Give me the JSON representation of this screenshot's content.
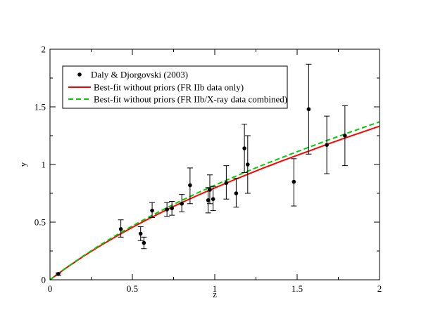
{
  "chart_data": {
    "type": "scatter",
    "title": "",
    "xlabel": "z",
    "ylabel": "y",
    "xlim": [
      0,
      2
    ],
    "ylim": [
      0,
      2
    ],
    "x_ticks": [
      "0",
      "0.5",
      "1",
      "1.5",
      "2"
    ],
    "y_ticks": [
      "0",
      "0.5",
      "1",
      "1.5",
      "2"
    ],
    "grid": false,
    "legend_position": "top-left",
    "series": [
      {
        "name": "Daly & Djorgovski (2003)",
        "kind": "points-with-errorbars",
        "color": "#000000",
        "points": [
          {
            "x": 0.05,
            "y": 0.05,
            "lo": 0.04,
            "hi": 0.06
          },
          {
            "x": 0.43,
            "y": 0.44,
            "lo": 0.37,
            "hi": 0.52
          },
          {
            "x": 0.55,
            "y": 0.4,
            "lo": 0.34,
            "hi": 0.46
          },
          {
            "x": 0.57,
            "y": 0.32,
            "lo": 0.27,
            "hi": 0.37
          },
          {
            "x": 0.62,
            "y": 0.6,
            "lo": 0.54,
            "hi": 0.67
          },
          {
            "x": 0.71,
            "y": 0.61,
            "lo": 0.55,
            "hi": 0.67
          },
          {
            "x": 0.74,
            "y": 0.62,
            "lo": 0.56,
            "hi": 0.68
          },
          {
            "x": 0.8,
            "y": 0.66,
            "lo": 0.59,
            "hi": 0.74
          },
          {
            "x": 0.85,
            "y": 0.82,
            "lo": 0.66,
            "hi": 0.97
          },
          {
            "x": 0.96,
            "y": 0.69,
            "lo": 0.58,
            "hi": 0.8
          },
          {
            "x": 0.97,
            "y": 0.78,
            "lo": 0.66,
            "hi": 0.91
          },
          {
            "x": 0.99,
            "y": 0.7,
            "lo": 0.6,
            "hi": 0.81
          },
          {
            "x": 1.07,
            "y": 0.84,
            "lo": 0.7,
            "hi": 0.99
          },
          {
            "x": 1.13,
            "y": 0.75,
            "lo": 0.63,
            "hi": 0.88
          },
          {
            "x": 1.18,
            "y": 1.14,
            "lo": 0.93,
            "hi": 1.35
          },
          {
            "x": 1.2,
            "y": 1.0,
            "lo": 0.75,
            "hi": 1.25
          },
          {
            "x": 1.48,
            "y": 0.85,
            "lo": 0.64,
            "hi": 1.05
          },
          {
            "x": 1.57,
            "y": 1.48,
            "lo": 1.09,
            "hi": 1.87
          },
          {
            "x": 1.68,
            "y": 1.17,
            "lo": 0.92,
            "hi": 1.42
          },
          {
            "x": 1.79,
            "y": 1.25,
            "lo": 0.99,
            "hi": 1.51
          }
        ]
      },
      {
        "name": "Best-fit without priors (FR IIb data only)",
        "kind": "line",
        "color": "#ff0000",
        "dash": "solid",
        "x": [
          0,
          0.05,
          0.1,
          0.2,
          0.3,
          0.4,
          0.5,
          0.6,
          0.7,
          0.8,
          0.9,
          1.0,
          1.1,
          1.2,
          1.3,
          1.4,
          1.5,
          1.6,
          1.7,
          1.8,
          1.9,
          2.0
        ],
        "y": [
          0,
          0.053,
          0.104,
          0.201,
          0.291,
          0.375,
          0.455,
          0.53,
          0.601,
          0.67,
          0.735,
          0.797,
          0.857,
          0.915,
          0.972,
          1.027,
          1.08,
          1.132,
          1.184,
          1.234,
          1.283,
          1.332
        ]
      },
      {
        "name": "Best-fit without priors (FR IIb/X-ray data combined)",
        "kind": "line",
        "color": "#00cc00",
        "dash": "dashed",
        "x": [
          0,
          0.05,
          0.1,
          0.2,
          0.3,
          0.4,
          0.5,
          0.6,
          0.7,
          0.8,
          0.9,
          1.0,
          1.1,
          1.2,
          1.3,
          1.4,
          1.5,
          1.6,
          1.7,
          1.8,
          1.9,
          2.0
        ],
        "y": [
          0,
          0.054,
          0.106,
          0.205,
          0.298,
          0.385,
          0.467,
          0.544,
          0.618,
          0.689,
          0.756,
          0.82,
          0.882,
          0.942,
          1.0,
          1.056,
          1.111,
          1.165,
          1.218,
          1.269,
          1.32,
          1.37
        ]
      }
    ]
  }
}
